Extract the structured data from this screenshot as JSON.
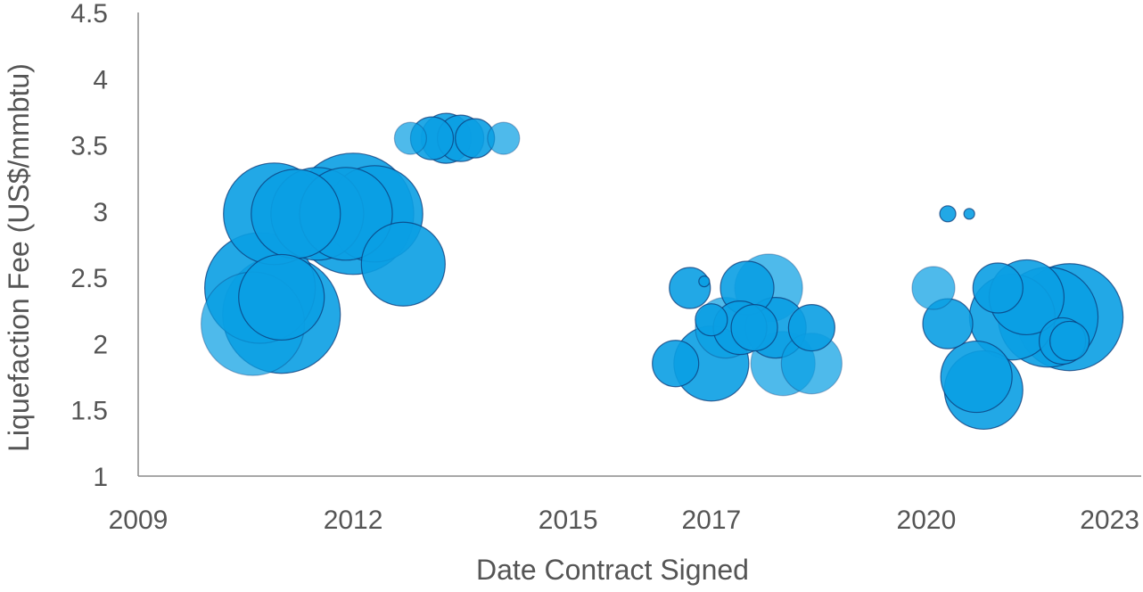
{
  "chart_data": {
    "type": "scatter",
    "subtype": "bubble",
    "xlabel": "Date Contract Signed",
    "ylabel": "Liquefaction Fee (US$/mmbtu)",
    "x_ticks": [
      {
        "value": 2009,
        "label": "2009"
      },
      {
        "value": 2012,
        "label": "2012"
      },
      {
        "value": 2015,
        "label": "2015"
      },
      {
        "value": 2017,
        "label": "2017"
      },
      {
        "value": 2020,
        "label": "2020"
      },
      {
        "value": 2023,
        "label": "2023"
      }
    ],
    "xlim": [
      2009,
      2023
    ],
    "y_ticks": [
      "1",
      "1.5",
      "2",
      "2.5",
      "3",
      "3.5",
      "4",
      "4.5"
    ],
    "ylim": [
      1,
      4.5
    ],
    "grid": false,
    "legend": "none",
    "colors": {
      "bubble_fill": "#0a9fe3",
      "bubble_stroke": "#0b3a78",
      "axis": "#8a8a8a",
      "text": "#555555"
    },
    "points": [
      {
        "x": 2010.6,
        "y": 2.15,
        "size": 58,
        "faded": true
      },
      {
        "x": 2010.7,
        "y": 2.42,
        "size": 62,
        "faded": false
      },
      {
        "x": 2010.9,
        "y": 2.98,
        "size": 57,
        "faded": false
      },
      {
        "x": 2011.2,
        "y": 2.98,
        "size": 50,
        "faded": false
      },
      {
        "x": 2011.5,
        "y": 2.98,
        "size": 52,
        "faded": false
      },
      {
        "x": 2011.9,
        "y": 2.98,
        "size": 52,
        "faded": false
      },
      {
        "x": 2012.0,
        "y": 2.98,
        "size": 68,
        "faded": false
      },
      {
        "x": 2012.3,
        "y": 2.98,
        "size": 54,
        "faded": false
      },
      {
        "x": 2012.7,
        "y": 2.6,
        "size": 47,
        "faded": false
      },
      {
        "x": 2011.0,
        "y": 2.35,
        "size": 48,
        "faded": false
      },
      {
        "x": 2011.0,
        "y": 2.22,
        "size": 66,
        "faded": false
      },
      {
        "x": 2012.8,
        "y": 3.55,
        "size": 18,
        "faded": true
      },
      {
        "x": 2013.1,
        "y": 3.55,
        "size": 24,
        "faded": false
      },
      {
        "x": 2013.3,
        "y": 3.55,
        "size": 28,
        "faded": false
      },
      {
        "x": 2013.5,
        "y": 3.55,
        "size": 26,
        "faded": false
      },
      {
        "x": 2013.7,
        "y": 3.55,
        "size": 22,
        "faded": false
      },
      {
        "x": 2014.1,
        "y": 3.55,
        "size": 18,
        "faded": true
      },
      {
        "x": 2016.5,
        "y": 1.85,
        "size": 26,
        "faded": false
      },
      {
        "x": 2016.7,
        "y": 2.42,
        "size": 23,
        "faded": false
      },
      {
        "x": 2017.0,
        "y": 1.85,
        "size": 42,
        "faded": false
      },
      {
        "x": 2017.2,
        "y": 2.12,
        "size": 34,
        "faded": true
      },
      {
        "x": 2017.5,
        "y": 2.42,
        "size": 30,
        "faded": false
      },
      {
        "x": 2017.8,
        "y": 2.42,
        "size": 38,
        "faded": true
      },
      {
        "x": 2017.4,
        "y": 2.12,
        "size": 30,
        "faded": false
      },
      {
        "x": 2017.6,
        "y": 2.12,
        "size": 26,
        "faded": false
      },
      {
        "x": 2017.9,
        "y": 2.12,
        "size": 34,
        "faded": false
      },
      {
        "x": 2018.0,
        "y": 1.85,
        "size": 36,
        "faded": true
      },
      {
        "x": 2018.4,
        "y": 1.85,
        "size": 34,
        "faded": true
      },
      {
        "x": 2018.4,
        "y": 2.12,
        "size": 26,
        "faded": false
      },
      {
        "x": 2016.9,
        "y": 2.47,
        "size": 6,
        "faded": false
      },
      {
        "x": 2017.0,
        "y": 2.18,
        "size": 18,
        "faded": false
      },
      {
        "x": 2020.1,
        "y": 2.42,
        "size": 24,
        "faded": true
      },
      {
        "x": 2020.3,
        "y": 2.98,
        "size": 9,
        "faded": false
      },
      {
        "x": 2020.6,
        "y": 2.98,
        "size": 6,
        "faded": false
      },
      {
        "x": 2020.3,
        "y": 2.15,
        "size": 28,
        "faded": false
      },
      {
        "x": 2020.7,
        "y": 1.75,
        "size": 40,
        "faded": false
      },
      {
        "x": 2020.8,
        "y": 1.65,
        "size": 44,
        "faded": false
      },
      {
        "x": 2021.0,
        "y": 2.42,
        "size": 28,
        "faded": false
      },
      {
        "x": 2021.2,
        "y": 2.2,
        "size": 48,
        "faded": false
      },
      {
        "x": 2021.4,
        "y": 2.35,
        "size": 42,
        "faded": false
      },
      {
        "x": 2021.7,
        "y": 2.2,
        "size": 56,
        "faded": false
      },
      {
        "x": 2022.0,
        "y": 2.2,
        "size": 60,
        "faded": false
      },
      {
        "x": 2021.9,
        "y": 2.02,
        "size": 26,
        "faded": false
      },
      {
        "x": 2022.0,
        "y": 2.02,
        "size": 22,
        "faded": false
      }
    ]
  }
}
